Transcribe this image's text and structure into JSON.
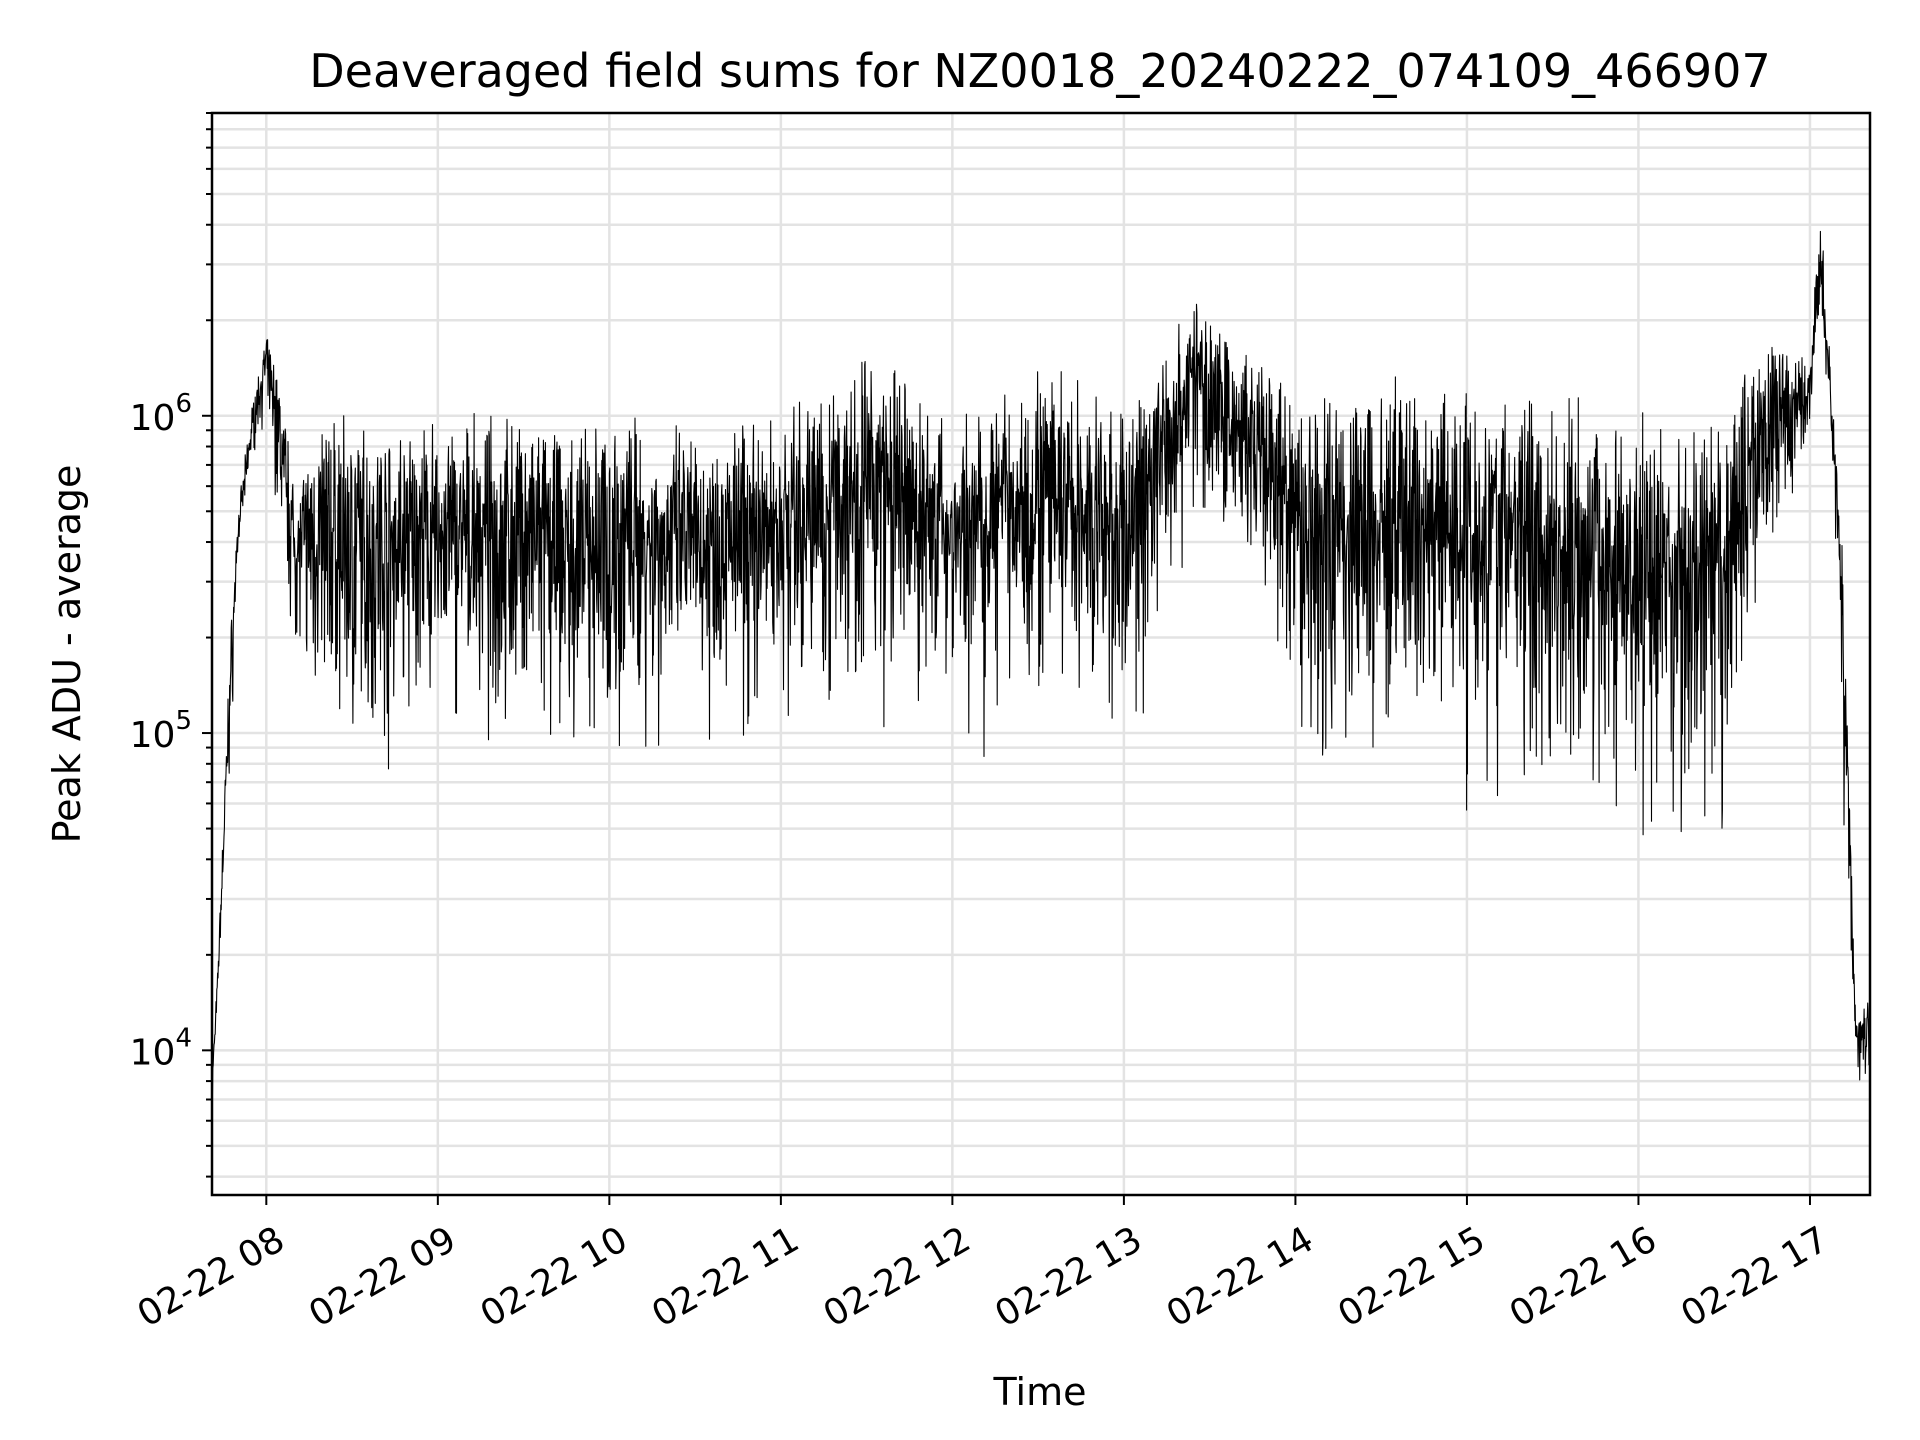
{
  "chart_data": {
    "type": "line",
    "title": "Deaveraged field sums for NZ0018_20240222_074109_466907",
    "xlabel": "Time",
    "ylabel": "Peak ADU - average",
    "yscale": "log",
    "ylim": [
      3500,
      9000000
    ],
    "xlim": [
      "2024-02-22 07:41",
      "2024-02-22 17:21"
    ],
    "grid": "on (major and minor)",
    "line_color": "#000000",
    "x_ticks": [
      {
        "value": "2024-02-22 08:00",
        "label": "02-22 08"
      },
      {
        "value": "2024-02-22 09:00",
        "label": "02-22 09"
      },
      {
        "value": "2024-02-22 10:00",
        "label": "02-22 10"
      },
      {
        "value": "2024-02-22 11:00",
        "label": "02-22 11"
      },
      {
        "value": "2024-02-22 12:00",
        "label": "02-22 12"
      },
      {
        "value": "2024-02-22 13:00",
        "label": "02-22 13"
      },
      {
        "value": "2024-02-22 14:00",
        "label": "02-22 14"
      },
      {
        "value": "2024-02-22 15:00",
        "label": "02-22 15"
      },
      {
        "value": "2024-02-22 16:00",
        "label": "02-22 16"
      },
      {
        "value": "2024-02-22 17:00",
        "label": "02-22 17"
      }
    ],
    "y_ticks": [
      {
        "value": 10000,
        "label": "10",
        "exp": "4"
      },
      {
        "value": 100000,
        "label": "10",
        "exp": "5"
      },
      {
        "value": 1000000,
        "label": "10",
        "exp": "6"
      }
    ],
    "series": [
      {
        "name": "",
        "envelope": [
          {
            "x": "2024-02-22 07:41",
            "low": 5000,
            "high": 9000
          },
          {
            "x": "2024-02-22 07:43",
            "low": 14000,
            "high": 18000
          },
          {
            "x": "2024-02-22 07:47",
            "low": 50000,
            "high": 180000
          },
          {
            "x": "2024-02-22 07:50",
            "low": 300000,
            "high": 500000
          },
          {
            "x": "2024-02-22 07:55",
            "low": 650000,
            "high": 1100000
          },
          {
            "x": "2024-02-22 08:00",
            "low": 1000000,
            "high": 1800000
          },
          {
            "x": "2024-02-22 08:05",
            "low": 250000,
            "high": 1400000
          },
          {
            "x": "2024-02-22 08:10",
            "low": 150000,
            "high": 600000
          },
          {
            "x": "2024-02-22 08:20",
            "low": 55000,
            "high": 1100000
          },
          {
            "x": "2024-02-22 08:30",
            "low": 42000,
            "high": 1050000
          },
          {
            "x": "2024-02-22 08:45",
            "low": 55000,
            "high": 1000000
          },
          {
            "x": "2024-02-22 09:00",
            "low": 60000,
            "high": 1000000
          },
          {
            "x": "2024-02-22 09:30",
            "low": 55000,
            "high": 1050000
          },
          {
            "x": "2024-02-22 09:50",
            "low": 42000,
            "high": 950000
          },
          {
            "x": "2024-02-22 10:00",
            "low": 45000,
            "high": 1150000
          },
          {
            "x": "2024-02-22 10:30",
            "low": 60000,
            "high": 950000
          },
          {
            "x": "2024-02-22 11:00",
            "low": 70000,
            "high": 1050000
          },
          {
            "x": "2024-02-22 11:30",
            "low": 60000,
            "high": 1800000
          },
          {
            "x": "2024-02-22 12:00",
            "low": 65000,
            "high": 1000000
          },
          {
            "x": "2024-02-22 12:30",
            "low": 60000,
            "high": 1600000
          },
          {
            "x": "2024-02-22 13:00",
            "low": 50000,
            "high": 1100000
          },
          {
            "x": "2024-02-22 13:25",
            "low": 380000,
            "high": 2500000
          },
          {
            "x": "2024-02-22 13:40",
            "low": 200000,
            "high": 1800000
          },
          {
            "x": "2024-02-22 14:00",
            "low": 40000,
            "high": 1400000
          },
          {
            "x": "2024-02-22 14:20",
            "low": 35000,
            "high": 1400000
          },
          {
            "x": "2024-02-22 14:40",
            "low": 40000,
            "high": 1450000
          },
          {
            "x": "2024-02-22 15:00",
            "low": 40000,
            "high": 1400000
          },
          {
            "x": "2024-02-22 15:20",
            "low": 32000,
            "high": 1300000
          },
          {
            "x": "2024-02-22 15:40",
            "low": 30000,
            "high": 1200000
          },
          {
            "x": "2024-02-22 16:00",
            "low": 25000,
            "high": 1050000
          },
          {
            "x": "2024-02-22 16:20",
            "low": 20000,
            "high": 1000000
          },
          {
            "x": "2024-02-22 16:30",
            "low": 18000,
            "high": 1050000
          },
          {
            "x": "2024-02-22 16:40",
            "low": 150000,
            "high": 1700000
          },
          {
            "x": "2024-02-22 16:50",
            "low": 300000,
            "high": 1800000
          },
          {
            "x": "2024-02-22 17:00",
            "low": 700000,
            "high": 1500000
          },
          {
            "x": "2024-02-22 17:03",
            "low": 1000000,
            "high": 6800000
          },
          {
            "x": "2024-02-22 17:08",
            "low": 650000,
            "high": 1100000
          },
          {
            "x": "2024-02-22 17:12",
            "low": 30000,
            "high": 400000
          },
          {
            "x": "2024-02-22 17:16",
            "low": 7500,
            "high": 13000
          },
          {
            "x": "2024-02-22 17:21",
            "low": 8000,
            "high": 15000
          }
        ]
      }
    ]
  }
}
